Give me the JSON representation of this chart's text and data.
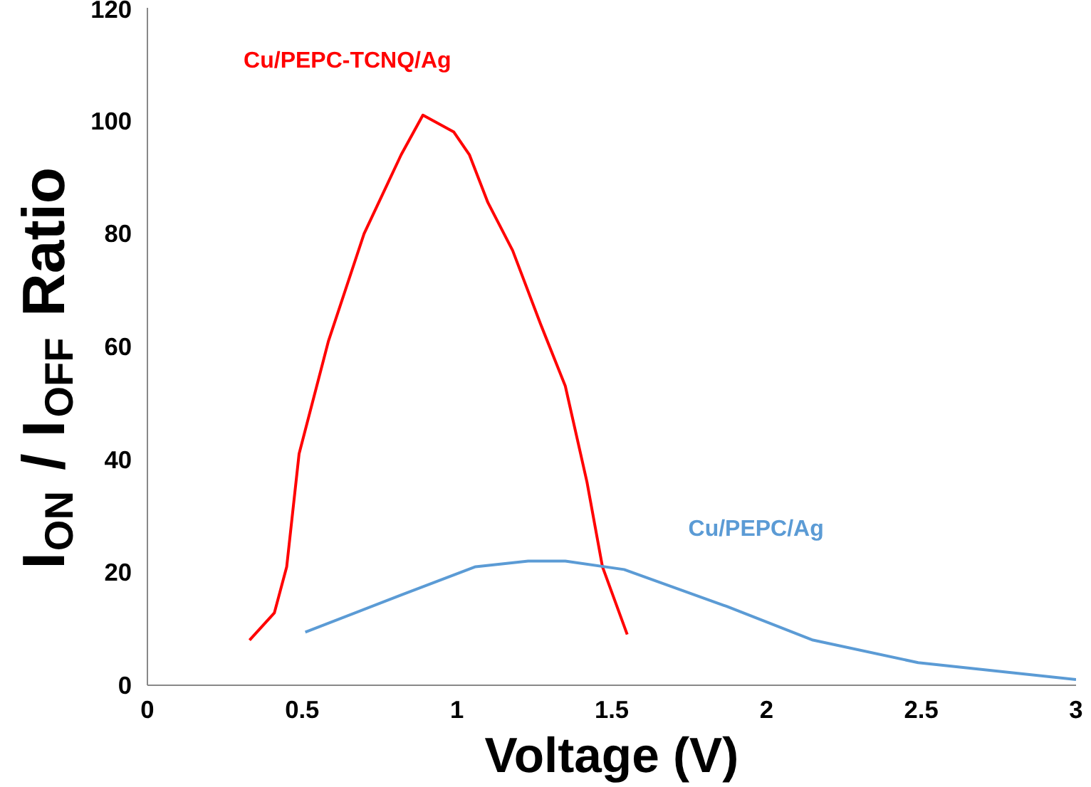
{
  "chart_data": {
    "type": "line",
    "xlabel": "Voltage (V)",
    "ylabel": "I$_{ON}$ / I$_{OFF}$ Ratio",
    "xlim": [
      0,
      3
    ],
    "xticks": [
      0,
      0.5,
      1,
      1.5,
      2,
      2.5,
      3
    ],
    "ylim": [
      0,
      120
    ],
    "yticks": [
      0,
      20,
      40,
      60,
      80,
      100,
      120
    ],
    "grid": false,
    "legend": false,
    "series": [
      {
        "name": "Cu/PEPC-TCNQ/Ag",
        "color": "#ff0000",
        "x": [
          0.33,
          0.41,
          0.45,
          0.49,
          0.585,
          0.7,
          0.82,
          0.89,
          0.99,
          1.04,
          1.1,
          1.18,
          1.27,
          1.35,
          1.42,
          1.47,
          1.55
        ],
        "values": [
          8,
          12.8,
          21,
          41,
          61,
          80,
          94,
          101,
          98,
          94,
          85.5,
          77,
          64,
          53,
          36,
          21,
          9
        ]
      },
      {
        "name": "Cu/PEPC/Ag",
        "color": "#5b9bd5",
        "x": [
          0.51,
          0.82,
          1.06,
          1.23,
          1.35,
          1.54,
          1.87,
          2.15,
          2.49,
          3.0
        ],
        "values": [
          9.4,
          16,
          21,
          22,
          22,
          20.5,
          14,
          8,
          4,
          1
        ]
      }
    ]
  }
}
